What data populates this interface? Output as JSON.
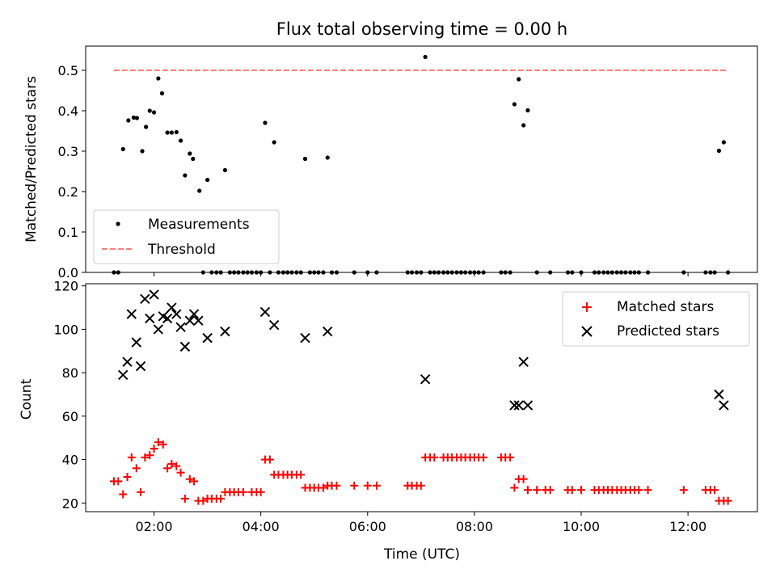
{
  "chart_data": [
    {
      "type": "scatter",
      "title": "Flux total observing time = 0.00 h",
      "xlabel": "",
      "ylabel": "Matched/Predicted stars",
      "xlim": [
        0.72,
        13.3
      ],
      "ylim": [
        0,
        0.56
      ],
      "yticks": [
        0.0,
        0.1,
        0.2,
        0.3,
        0.4,
        0.5
      ],
      "ytick_labels": [
        "0.0",
        "0.1",
        "0.2",
        "0.3",
        "0.4",
        "0.5"
      ],
      "xticks": [
        2,
        4,
        6,
        8,
        10,
        12
      ],
      "legend": {
        "placement": "lower-left",
        "entries": [
          "Measurements",
          "Threshold"
        ]
      },
      "series": [
        {
          "name": "Measurements",
          "marker": "point",
          "color": "#000000",
          "points": [
            [
              1.42,
              0.305
            ],
            [
              1.52,
              0.376
            ],
            [
              1.62,
              0.383
            ],
            [
              1.68,
              0.382
            ],
            [
              1.78,
              0.3
            ],
            [
              1.85,
              0.36
            ],
            [
              1.92,
              0.4
            ],
            [
              2.0,
              0.396
            ],
            [
              2.08,
              0.48
            ],
            [
              2.15,
              0.443
            ],
            [
              2.25,
              0.346
            ],
            [
              2.33,
              0.346
            ],
            [
              2.42,
              0.347
            ],
            [
              2.5,
              0.326
            ],
            [
              2.58,
              0.24
            ],
            [
              2.67,
              0.294
            ],
            [
              2.73,
              0.281
            ],
            [
              2.85,
              0.202
            ],
            [
              3.0,
              0.229
            ],
            [
              3.33,
              0.253
            ],
            [
              4.08,
              0.37
            ],
            [
              4.25,
              0.322
            ],
            [
              4.83,
              0.281
            ],
            [
              5.25,
              0.284
            ],
            [
              7.08,
              0.533
            ],
            [
              8.75,
              0.416
            ],
            [
              8.83,
              0.478
            ],
            [
              8.92,
              0.364
            ],
            [
              9.0,
              0.401
            ],
            [
              12.58,
              0.301
            ],
            [
              12.67,
              0.322
            ],
            [
              1.25,
              0.0
            ],
            [
              1.33,
              0.0
            ],
            [
              2.92,
              0.0
            ],
            [
              3.08,
              0.0
            ],
            [
              3.17,
              0.0
            ],
            [
              3.25,
              0.0
            ],
            [
              3.42,
              0.0
            ],
            [
              3.5,
              0.0
            ],
            [
              3.58,
              0.0
            ],
            [
              3.67,
              0.0
            ],
            [
              3.75,
              0.0
            ],
            [
              3.83,
              0.0
            ],
            [
              3.92,
              0.0
            ],
            [
              4.0,
              0.0
            ],
            [
              4.17,
              0.0
            ],
            [
              4.33,
              0.0
            ],
            [
              4.42,
              0.0
            ],
            [
              4.5,
              0.0
            ],
            [
              4.58,
              0.0
            ],
            [
              4.67,
              0.0
            ],
            [
              4.75,
              0.0
            ],
            [
              4.92,
              0.0
            ],
            [
              5.0,
              0.0
            ],
            [
              5.08,
              0.0
            ],
            [
              5.17,
              0.0
            ],
            [
              5.33,
              0.0
            ],
            [
              5.42,
              0.0
            ],
            [
              5.75,
              0.0
            ],
            [
              6.0,
              0.0
            ],
            [
              6.17,
              0.0
            ],
            [
              6.75,
              0.0
            ],
            [
              6.83,
              0.0
            ],
            [
              6.92,
              0.0
            ],
            [
              7.0,
              0.0
            ],
            [
              7.17,
              0.0
            ],
            [
              7.25,
              0.0
            ],
            [
              7.33,
              0.0
            ],
            [
              7.42,
              0.0
            ],
            [
              7.5,
              0.0
            ],
            [
              7.58,
              0.0
            ],
            [
              7.67,
              0.0
            ],
            [
              7.75,
              0.0
            ],
            [
              7.83,
              0.0
            ],
            [
              7.92,
              0.0
            ],
            [
              8.0,
              0.0
            ],
            [
              8.08,
              0.0
            ],
            [
              8.17,
              0.0
            ],
            [
              8.5,
              0.0
            ],
            [
              8.58,
              0.0
            ],
            [
              8.67,
              0.0
            ],
            [
              9.17,
              0.0
            ],
            [
              9.42,
              0.0
            ],
            [
              9.75,
              0.0
            ],
            [
              9.83,
              0.0
            ],
            [
              10.0,
              0.0
            ],
            [
              10.25,
              0.0
            ],
            [
              10.33,
              0.0
            ],
            [
              10.42,
              0.0
            ],
            [
              10.5,
              0.0
            ],
            [
              10.58,
              0.0
            ],
            [
              10.67,
              0.0
            ],
            [
              10.75,
              0.0
            ],
            [
              10.83,
              0.0
            ],
            [
              10.92,
              0.0
            ],
            [
              11.0,
              0.0
            ],
            [
              11.08,
              0.0
            ],
            [
              11.25,
              0.0
            ],
            [
              11.92,
              0.0
            ],
            [
              12.33,
              0.0
            ],
            [
              12.42,
              0.0
            ],
            [
              12.5,
              0.0
            ],
            [
              12.75,
              0.0
            ]
          ]
        },
        {
          "name": "Threshold",
          "line": "dashed",
          "color": "#ff7f7f",
          "points": [
            [
              1.25,
              0.5
            ],
            [
              12.75,
              0.5
            ]
          ]
        }
      ]
    },
    {
      "type": "scatter",
      "title": "",
      "xlabel": "Time (UTC)",
      "ylabel": "Count",
      "xlim": [
        0.72,
        13.3
      ],
      "ylim": [
        16,
        121
      ],
      "yticks": [
        20,
        40,
        60,
        80,
        100,
        120
      ],
      "ytick_labels": [
        "20",
        "40",
        "60",
        "80",
        "100",
        "120"
      ],
      "xticks": [
        2,
        4,
        6,
        8,
        10,
        12
      ],
      "xtick_labels": [
        "02:00",
        "04:00",
        "06:00",
        "08:00",
        "10:00",
        "12:00"
      ],
      "legend": {
        "placement": "upper-right",
        "entries": [
          "Matched stars",
          "Predicted stars"
        ]
      },
      "series": [
        {
          "name": "Matched stars",
          "marker": "plus",
          "color": "#ff0000",
          "points": [
            [
              1.25,
              30
            ],
            [
              1.33,
              30
            ],
            [
              1.42,
              24
            ],
            [
              1.5,
              32
            ],
            [
              1.58,
              41
            ],
            [
              1.67,
              36
            ],
            [
              1.75,
              25
            ],
            [
              1.83,
              41
            ],
            [
              1.92,
              42
            ],
            [
              2.0,
              45
            ],
            [
              2.08,
              48
            ],
            [
              2.17,
              47
            ],
            [
              2.25,
              36
            ],
            [
              2.33,
              38
            ],
            [
              2.42,
              37
            ],
            [
              2.5,
              34
            ],
            [
              2.58,
              22
            ],
            [
              2.67,
              31
            ],
            [
              2.75,
              30
            ],
            [
              2.83,
              21
            ],
            [
              2.92,
              21
            ],
            [
              3.0,
              22
            ],
            [
              3.08,
              22
            ],
            [
              3.17,
              22
            ],
            [
              3.25,
              22
            ],
            [
              3.33,
              25
            ],
            [
              3.42,
              25
            ],
            [
              3.5,
              25
            ],
            [
              3.58,
              25
            ],
            [
              3.67,
              25
            ],
            [
              3.83,
              25
            ],
            [
              3.92,
              25
            ],
            [
              4.0,
              25
            ],
            [
              4.08,
              40
            ],
            [
              4.17,
              40
            ],
            [
              4.25,
              33
            ],
            [
              4.33,
              33
            ],
            [
              4.42,
              33
            ],
            [
              4.5,
              33
            ],
            [
              4.58,
              33
            ],
            [
              4.67,
              33
            ],
            [
              4.75,
              33
            ],
            [
              4.83,
              27
            ],
            [
              4.92,
              27
            ],
            [
              5.0,
              27
            ],
            [
              5.08,
              27
            ],
            [
              5.17,
              27
            ],
            [
              5.25,
              28
            ],
            [
              5.33,
              28
            ],
            [
              5.42,
              28
            ],
            [
              5.75,
              28
            ],
            [
              6.0,
              28
            ],
            [
              6.17,
              28
            ],
            [
              6.75,
              28
            ],
            [
              6.83,
              28
            ],
            [
              6.92,
              28
            ],
            [
              7.0,
              28
            ],
            [
              7.08,
              41
            ],
            [
              7.17,
              41
            ],
            [
              7.25,
              41
            ],
            [
              7.42,
              41
            ],
            [
              7.5,
              41
            ],
            [
              7.58,
              41
            ],
            [
              7.67,
              41
            ],
            [
              7.75,
              41
            ],
            [
              7.83,
              41
            ],
            [
              7.92,
              41
            ],
            [
              8.0,
              41
            ],
            [
              8.08,
              41
            ],
            [
              8.17,
              41
            ],
            [
              8.5,
              41
            ],
            [
              8.58,
              41
            ],
            [
              8.67,
              41
            ],
            [
              8.75,
              27
            ],
            [
              8.83,
              31
            ],
            [
              8.92,
              31
            ],
            [
              9.0,
              26
            ],
            [
              9.17,
              26
            ],
            [
              9.33,
              26
            ],
            [
              9.42,
              26
            ],
            [
              9.75,
              26
            ],
            [
              9.83,
              26
            ],
            [
              10.0,
              26
            ],
            [
              10.25,
              26
            ],
            [
              10.33,
              26
            ],
            [
              10.42,
              26
            ],
            [
              10.5,
              26
            ],
            [
              10.58,
              26
            ],
            [
              10.67,
              26
            ],
            [
              10.75,
              26
            ],
            [
              10.83,
              26
            ],
            [
              10.92,
              26
            ],
            [
              11.0,
              26
            ],
            [
              11.08,
              26
            ],
            [
              11.25,
              26
            ],
            [
              11.92,
              26
            ],
            [
              12.33,
              26
            ],
            [
              12.42,
              26
            ],
            [
              12.5,
              26
            ],
            [
              12.58,
              21
            ],
            [
              12.67,
              21
            ],
            [
              12.75,
              21
            ]
          ]
        },
        {
          "name": "Predicted stars",
          "marker": "x",
          "color": "#000000",
          "points": [
            [
              1.42,
              79
            ],
            [
              1.5,
              85
            ],
            [
              1.58,
              107
            ],
            [
              1.67,
              94
            ],
            [
              1.75,
              83
            ],
            [
              1.83,
              114
            ],
            [
              1.92,
              105
            ],
            [
              2.0,
              116
            ],
            [
              2.08,
              100
            ],
            [
              2.17,
              106
            ],
            [
              2.25,
              105
            ],
            [
              2.33,
              110
            ],
            [
              2.42,
              107
            ],
            [
              2.5,
              101
            ],
            [
              2.58,
              92
            ],
            [
              2.67,
              104
            ],
            [
              2.75,
              107
            ],
            [
              2.83,
              104
            ],
            [
              3.0,
              96
            ],
            [
              3.33,
              99
            ],
            [
              4.08,
              108
            ],
            [
              4.25,
              102
            ],
            [
              4.83,
              96
            ],
            [
              5.25,
              99
            ],
            [
              7.08,
              77
            ],
            [
              8.75,
              65
            ],
            [
              8.83,
              65
            ],
            [
              8.92,
              85
            ],
            [
              9.0,
              65
            ],
            [
              12.58,
              70
            ],
            [
              12.67,
              65
            ]
          ]
        }
      ]
    }
  ]
}
